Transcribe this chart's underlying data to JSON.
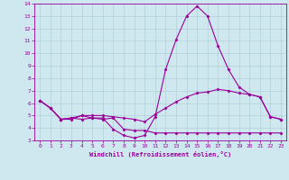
{
  "x": [
    0,
    1,
    2,
    3,
    4,
    5,
    6,
    7,
    8,
    9,
    10,
    11,
    12,
    13,
    14,
    15,
    16,
    17,
    18,
    19,
    20,
    21,
    22,
    23
  ],
  "line1": [
    6.2,
    5.6,
    4.7,
    4.8,
    5.0,
    5.0,
    5.0,
    4.9,
    4.8,
    4.7,
    4.5,
    5.1,
    5.6,
    6.1,
    6.5,
    6.8,
    6.9,
    7.1,
    7.0,
    6.8,
    6.7,
    6.5,
    4.9,
    4.7
  ],
  "line2": [
    6.2,
    5.6,
    4.7,
    4.7,
    5.0,
    4.8,
    4.7,
    4.8,
    3.9,
    3.8,
    3.8,
    3.6,
    3.6,
    3.6,
    3.6,
    3.6,
    3.6,
    3.6,
    3.6,
    3.6,
    3.6,
    3.6,
    3.6,
    3.6
  ],
  "line3": [
    6.2,
    5.6,
    4.7,
    4.8,
    4.7,
    4.8,
    4.8,
    3.9,
    3.4,
    3.2,
    3.4,
    4.9,
    8.7,
    11.1,
    13.0,
    13.8,
    13.0,
    10.6,
    8.7,
    7.3,
    6.7,
    6.5,
    4.9,
    4.7
  ],
  "bg_color": "#cfe8ef",
  "grid_color": "#b0d0d8",
  "line_color": "#990099",
  "line_width": 0.8,
  "marker": "D",
  "marker_size": 1.5,
  "xlabel": "Windchill (Refroidissement éolien,°C)",
  "ylim": [
    3,
    14
  ],
  "xlim": [
    -0.5,
    23.5
  ],
  "yticks": [
    3,
    4,
    5,
    6,
    7,
    8,
    9,
    10,
    11,
    12,
    13,
    14
  ],
  "xticks": [
    0,
    1,
    2,
    3,
    4,
    5,
    6,
    7,
    8,
    9,
    10,
    11,
    12,
    13,
    14,
    15,
    16,
    17,
    18,
    19,
    20,
    21,
    22,
    23
  ]
}
